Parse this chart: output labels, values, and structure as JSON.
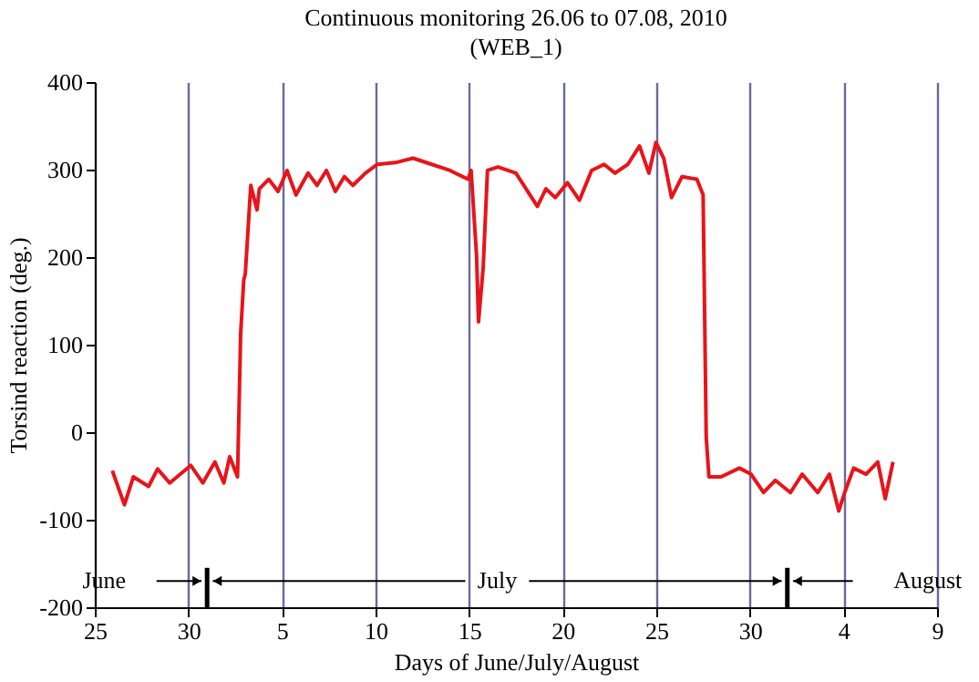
{
  "chart_data": {
    "type": "line",
    "title": "Continuous monitoring 26.06 to 07.08, 2010",
    "subtitle": "(WEB_1)",
    "xlabel": "Days of June/July/August",
    "ylabel": "Torsind reaction (deg.)",
    "xlim": [
      "2010-06-25",
      "2010-08-09"
    ],
    "xticks": [
      {
        "value": "2010-06-25",
        "label": "25"
      },
      {
        "value": "2010-06-30",
        "label": "30"
      },
      {
        "value": "2010-07-05",
        "label": "5"
      },
      {
        "value": "2010-07-10",
        "label": "10"
      },
      {
        "value": "2010-07-15",
        "label": "15"
      },
      {
        "value": "2010-07-20",
        "label": "20"
      },
      {
        "value": "2010-07-25",
        "label": "25"
      },
      {
        "value": "2010-07-30",
        "label": "30"
      },
      {
        "value": "2010-08-04",
        "label": "4"
      },
      {
        "value": "2010-08-09",
        "label": "9"
      }
    ],
    "ylim": [
      -200,
      400
    ],
    "yticks": [
      -200,
      -100,
      0,
      100,
      200,
      300,
      400
    ],
    "grid": "x",
    "line_style": "solid",
    "annotations": [
      "June",
      "July",
      "August"
    ],
    "series": [
      {
        "color": "#e8141a",
        "x": [
          "2010-06-25T22:30",
          "2010-06-26T14:00",
          "2010-06-27T01:30",
          "2010-06-27T21:00",
          "2010-06-28T08:30",
          "2010-06-29T00:00",
          "2010-06-30T03:00",
          "2010-06-30T18:30",
          "2010-07-01T10:00",
          "2010-07-01T21:30",
          "2010-07-02T05:00",
          "2010-07-02T15:00",
          "2010-07-02T19:00",
          "2010-07-02T23:00",
          "2010-07-03T01:00",
          "2010-07-03T08:00",
          "2010-07-03T16:00",
          "2010-07-03T19:00",
          "2010-07-04T07:00",
          "2010-07-04T19:00",
          "2010-07-05T06:30",
          "2010-07-05T18:00",
          "2010-07-06T09:30",
          "2010-07-06T21:00",
          "2010-07-07T09:00",
          "2010-07-07T20:30",
          "2010-07-08T08:00",
          "2010-07-08T19:00",
          "2010-07-09T11:00",
          "2010-07-10T02:30",
          "2010-07-11T01:30",
          "2010-07-12T00:00",
          "2010-07-13T00:00",
          "2010-07-13T23:30",
          "2010-07-14T22:30",
          "2010-07-15T02:30",
          "2010-07-15T09:30",
          "2010-07-15T12:00",
          "2010-07-15T18:00",
          "2010-07-15T23:30",
          "2010-07-16T13:00",
          "2010-07-17T12:00",
          "2010-07-18T15:30",
          "2010-07-19T02:30",
          "2010-07-19T14:30",
          "2010-07-20T06:00",
          "2010-07-20T21:30",
          "2010-07-21T13:00",
          "2010-07-22T05:00",
          "2010-07-22T19:00",
          "2010-07-23T11:30",
          "2010-07-24T02:30",
          "2010-07-24T14:30",
          "2010-07-24T23:30",
          "2010-07-25T09:30",
          "2010-07-25T19:30",
          "2010-07-26T09:00",
          "2010-07-27T04:00",
          "2010-07-27T12:00",
          "2010-07-27T16:00",
          "2010-07-27T19:30",
          "2010-07-28T11:00",
          "2010-07-29T10:30",
          "2010-07-30T01:30",
          "2010-07-30T17:30",
          "2010-07-31T08:30",
          "2010-08-01T04:00",
          "2010-08-01T19:00",
          "2010-08-02T15:00",
          "2010-08-03T06:00",
          "2010-08-03T18:00",
          "2010-08-04T01:30",
          "2010-08-04T13:00",
          "2010-08-05T05:00",
          "2010-08-05T20:00",
          "2010-08-06T05:30",
          "2010-08-06T15:30"
        ],
        "values": [
          -44,
          -83,
          -51,
          -62,
          -42,
          -58,
          -38,
          -58,
          -34,
          -58,
          -28,
          -51,
          112,
          174,
          181,
          282,
          254,
          278,
          289,
          275,
          299,
          271,
          296,
          282,
          299,
          275,
          292,
          282,
          296,
          306,
          308,
          313,
          306,
          299,
          289,
          299,
          202,
          126,
          188,
          299,
          303,
          296,
          258,
          278,
          268,
          285,
          265,
          299,
          306,
          296,
          306,
          327,
          296,
          331,
          313,
          268,
          292,
          289,
          271,
          -6,
          -51,
          -51,
          -41,
          -48,
          -69,
          -55,
          -69,
          -48,
          -69,
          -48,
          -90,
          -69,
          -41,
          -48,
          -34,
          -76,
          -34
        ]
      }
    ]
  }
}
